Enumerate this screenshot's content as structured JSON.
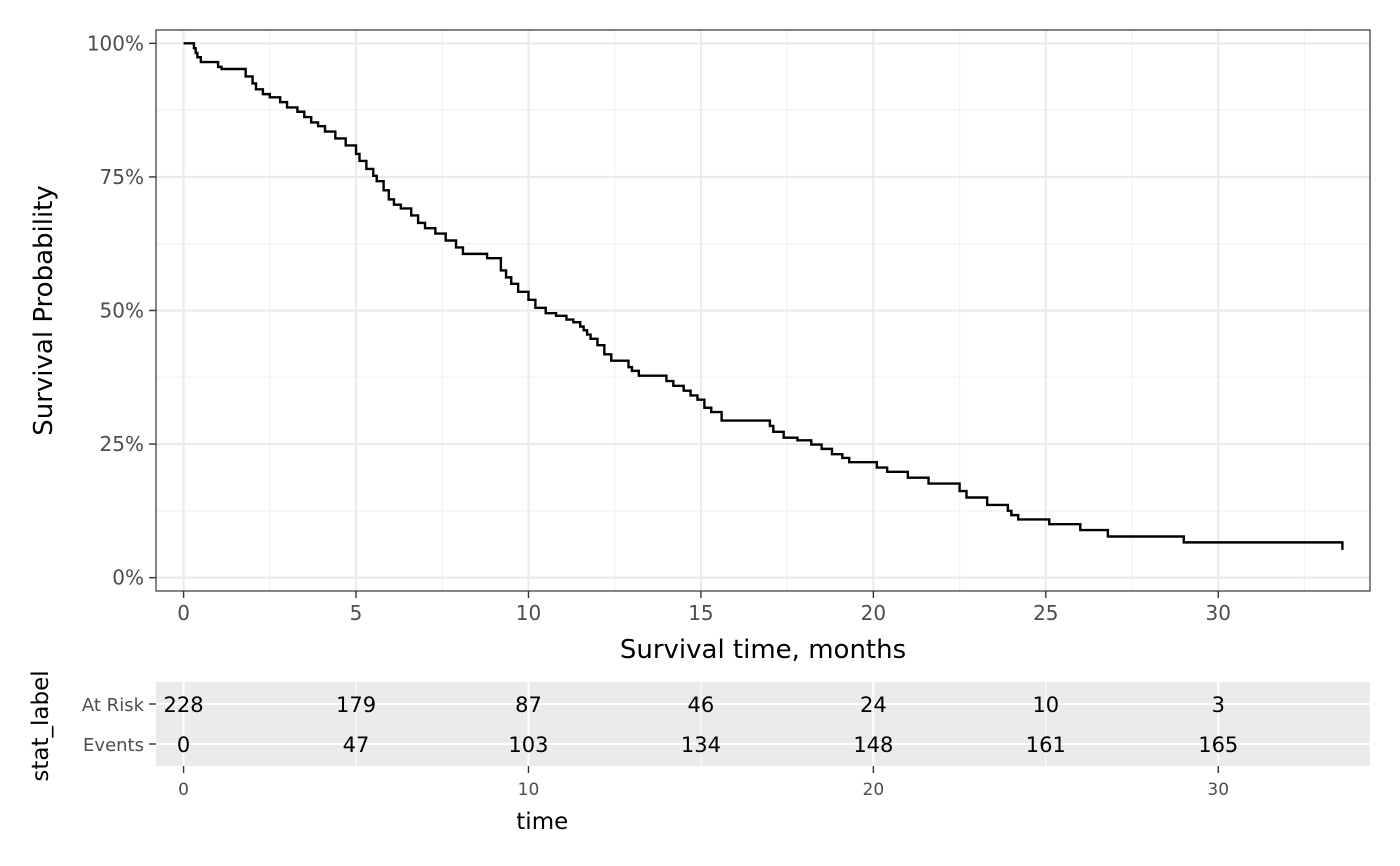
{
  "chart_data": {
    "type": "line",
    "xlabel": "Survival time, months",
    "ylabel": "Survival Probability",
    "xlim": [
      -0.8,
      34.4
    ],
    "ylim": [
      -0.025,
      1.025
    ],
    "x_ticks": [
      0,
      5,
      10,
      15,
      20,
      25,
      30
    ],
    "x_tick_labels": [
      "0",
      "5",
      "10",
      "15",
      "20",
      "25",
      "30"
    ],
    "y_ticks": [
      0,
      0.25,
      0.5,
      0.75,
      1.0
    ],
    "y_tick_labels": [
      "0%",
      "25%",
      "50%",
      "75%",
      "100%"
    ],
    "grid": true,
    "series": [
      {
        "step": true,
        "x": [
          0,
          0.3,
          0.35,
          0.4,
          0.5,
          1.0,
          1.1,
          1.8,
          2.0,
          2.1,
          2.3,
          2.5,
          2.8,
          3.0,
          3.3,
          3.5,
          3.7,
          3.9,
          4.1,
          4.4,
          4.7,
          5.0,
          5.1,
          5.3,
          5.5,
          5.6,
          5.8,
          5.95,
          6.1,
          6.3,
          6.6,
          6.8,
          7.0,
          7.3,
          7.6,
          7.9,
          8.1,
          8.8,
          9.2,
          9.35,
          9.5,
          9.7,
          10.0,
          10.2,
          10.5,
          10.8,
          11.1,
          11.3,
          11.5,
          11.6,
          11.7,
          11.8,
          12.0,
          12.2,
          12.4,
          12.9,
          13.0,
          13.2,
          14.0,
          14.2,
          14.5,
          14.7,
          14.9,
          15.1,
          15.3,
          15.6,
          17.0,
          17.1,
          17.4,
          17.8,
          18.2,
          18.5,
          18.8,
          19.1,
          19.3,
          20.1,
          20.4,
          21.0,
          21.6,
          22.5,
          22.7,
          23.3,
          23.9,
          24.0,
          24.2,
          25.1,
          26.0,
          26.8,
          29.0,
          33.6
        ],
        "y": [
          1.0,
          0.991,
          0.982,
          0.974,
          0.965,
          0.956,
          0.952,
          0.938,
          0.925,
          0.914,
          0.905,
          0.899,
          0.89,
          0.88,
          0.872,
          0.862,
          0.852,
          0.845,
          0.835,
          0.822,
          0.809,
          0.793,
          0.78,
          0.765,
          0.752,
          0.742,
          0.725,
          0.708,
          0.698,
          0.691,
          0.678,
          0.664,
          0.654,
          0.644,
          0.631,
          0.618,
          0.606,
          0.598,
          0.575,
          0.562,
          0.55,
          0.535,
          0.52,
          0.505,
          0.495,
          0.49,
          0.483,
          0.478,
          0.47,
          0.463,
          0.455,
          0.447,
          0.435,
          0.418,
          0.406,
          0.394,
          0.387,
          0.378,
          0.368,
          0.359,
          0.35,
          0.341,
          0.333,
          0.318,
          0.31,
          0.294,
          0.284,
          0.273,
          0.262,
          0.257,
          0.249,
          0.241,
          0.231,
          0.224,
          0.216,
          0.206,
          0.198,
          0.187,
          0.176,
          0.162,
          0.15,
          0.136,
          0.125,
          0.117,
          0.109,
          0.1,
          0.089,
          0.077,
          0.066,
          0.052
        ],
        "end_y": 0.052,
        "color": "#000000"
      }
    ],
    "risk_table": {
      "time_points": [
        0,
        5,
        10,
        15,
        20,
        25,
        30
      ],
      "rows": [
        {
          "label": "At Risk",
          "values": [
            "228",
            "179",
            "87",
            "46",
            "24",
            "10",
            "3"
          ]
        },
        {
          "label": "Events",
          "values": [
            "0",
            "47",
            "103",
            "134",
            "148",
            "161",
            "165"
          ]
        }
      ],
      "y_title": "stat_label",
      "x_title": "time",
      "x_ticks": [
        0,
        10,
        20,
        30
      ],
      "x_tick_labels": [
        "0",
        "10",
        "20",
        "30"
      ]
    }
  }
}
